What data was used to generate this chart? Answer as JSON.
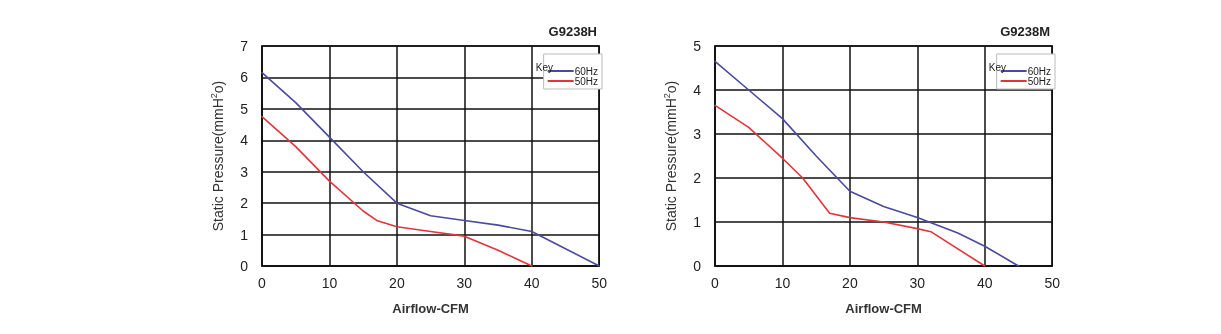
{
  "chart_data": [
    {
      "type": "line",
      "title": "G9238H",
      "xlabel": "Airflow-CFM",
      "ylabel": "Static Pressure(mmH$^{2}$o)",
      "legend_title": "Key",
      "legend": "top right",
      "grid": true,
      "marker": "none",
      "line_style": "solid",
      "xlim": [
        0,
        50
      ],
      "xticks": [
        0,
        10,
        20,
        30,
        40,
        50
      ],
      "ylim": [
        0,
        7
      ],
      "yticks": [
        0,
        1,
        2,
        3,
        4,
        5,
        6,
        7
      ],
      "series": [
        {
          "name": "60Hz",
          "color": "#4a4a9e",
          "x": [
            0,
            5,
            10,
            15,
            20,
            25,
            30,
            35,
            40,
            45,
            50
          ],
          "values": [
            6.15,
            5.2,
            4.1,
            3.0,
            2.0,
            1.6,
            1.45,
            1.3,
            1.1,
            0.55,
            0
          ]
        },
        {
          "name": "50Hz",
          "color": "#e0353a",
          "x": [
            0,
            5,
            10,
            15,
            17,
            20,
            25,
            30,
            35,
            40
          ],
          "values": [
            4.75,
            3.8,
            2.7,
            1.75,
            1.45,
            1.25,
            1.1,
            0.95,
            0.5,
            0
          ]
        }
      ]
    },
    {
      "type": "line",
      "title": "G9238M",
      "xlabel": "Airflow-CFM",
      "ylabel": "Static Pressure(mmH$^{2}$o)",
      "legend_title": "Key",
      "legend": "top right",
      "grid": true,
      "marker": "none",
      "line_style": "solid",
      "xlim": [
        0,
        50
      ],
      "xticks": [
        0,
        10,
        20,
        30,
        40,
        50
      ],
      "ylim": [
        0,
        5
      ],
      "yticks": [
        0,
        1,
        2,
        3,
        4,
        5
      ],
      "series": [
        {
          "name": "60Hz",
          "color": "#4a4a9e",
          "x": [
            0,
            5,
            10,
            15,
            20,
            25,
            30,
            36,
            40,
            45
          ],
          "values": [
            4.65,
            4.0,
            3.35,
            2.5,
            1.7,
            1.35,
            1.1,
            0.75,
            0.45,
            0
          ]
        },
        {
          "name": "50Hz",
          "color": "#e0353a",
          "x": [
            0,
            5,
            10,
            13,
            17,
            20,
            25,
            30,
            32,
            40
          ],
          "values": [
            3.65,
            3.15,
            2.45,
            2.0,
            1.2,
            1.1,
            1.0,
            0.85,
            0.78,
            0
          ]
        }
      ]
    }
  ]
}
